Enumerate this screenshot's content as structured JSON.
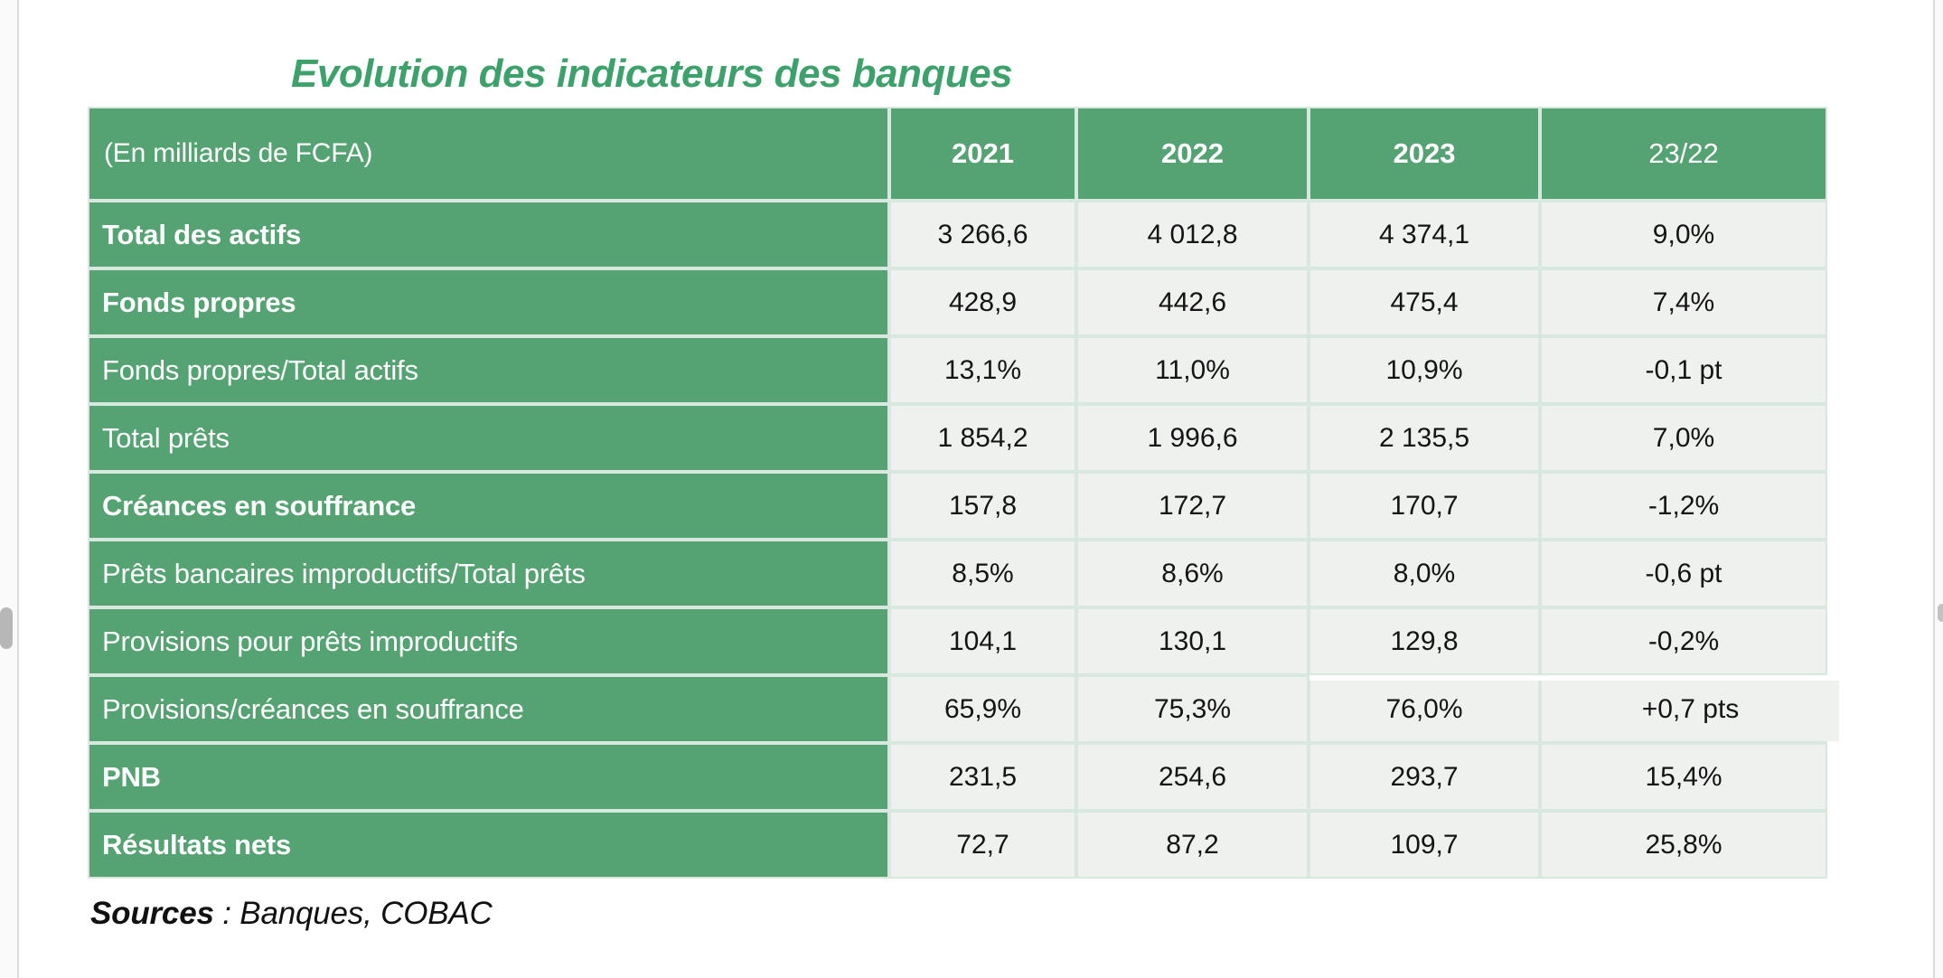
{
  "page": {
    "title": "Evolution des indicateurs des banques",
    "source_label": "Sources",
    "source_text": " : Banques, COBAC"
  },
  "colors": {
    "header_green": "#55a373",
    "title_green": "#3ca16a",
    "cell_background": "#eff1ef",
    "table_grid_green": "#d9e8de"
  },
  "table": {
    "unit_label": "(En milliards de FCFA)",
    "year_columns": [
      "2021",
      "2022",
      "2023",
      "23/22"
    ],
    "rows": [
      {
        "label": "Total des actifs",
        "bold": true,
        "values": [
          "3 266,6",
          "4 012,8",
          "4 374,1",
          "9,0%"
        ]
      },
      {
        "label": "Fonds propres",
        "bold": true,
        "values": [
          "428,9",
          "442,6",
          "475,4",
          "7,4%"
        ]
      },
      {
        "label": "Fonds propres/Total actifs",
        "bold": false,
        "values": [
          "13,1%",
          "11,0%",
          "10,9%",
          "-0,1 pt"
        ]
      },
      {
        "label": "Total prêts",
        "bold": false,
        "values": [
          "1 854,2",
          "1 996,6",
          "2 135,5",
          "7,0%"
        ]
      },
      {
        "label": "Créances en souffrance",
        "bold": true,
        "values": [
          "157,8",
          "172,7",
          "170,7",
          "-1,2%"
        ]
      },
      {
        "label": "Prêts bancaires improductifs/Total prêts",
        "bold": false,
        "values": [
          "8,5%",
          "8,6%",
          "8,0%",
          "-0,6 pt"
        ]
      },
      {
        "label": "Provisions pour prêts improductifs",
        "bold": false,
        "values": [
          "104,1",
          "130,1",
          "129,8",
          "-0,2%"
        ]
      },
      {
        "label": "Provisions/créances en souffrance",
        "bold": false,
        "values": [
          "65,9%",
          "75,3%",
          "76,0%",
          "+0,7 pts"
        ]
      },
      {
        "label": "PNB",
        "bold": true,
        "values": [
          "231,5",
          "254,6",
          "293,7",
          "15,4%"
        ]
      },
      {
        "label": "Résultats nets",
        "bold": true,
        "values": [
          "72,7",
          "87,2",
          "109,7",
          "25,8%"
        ]
      }
    ]
  }
}
